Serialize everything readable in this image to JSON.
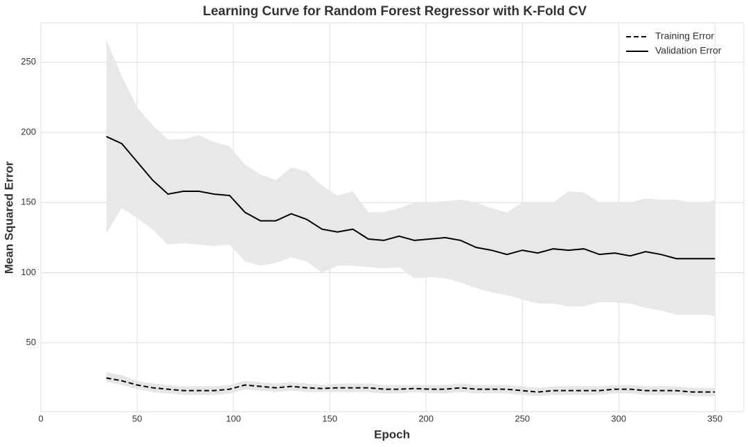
{
  "chart_data": {
    "type": "line",
    "title": "Learning Curve for Random Forest Regressor with K-Fold CV",
    "x_label": "Epoch",
    "y_label": "Mean Squared Error",
    "x": [
      34,
      42,
      50,
      58,
      66,
      74,
      82,
      90,
      98,
      106,
      114,
      122,
      130,
      138,
      146,
      154,
      162,
      170,
      178,
      186,
      194,
      202,
      210,
      218,
      226,
      234,
      242,
      250,
      258,
      266,
      274,
      282,
      290,
      298,
      306,
      314,
      322,
      330,
      338,
      346,
      350
    ],
    "series": [
      {
        "name": "Training Error",
        "color": "#000000",
        "dash": "dashed",
        "band_color": "#e6e6e6",
        "values": [
          25,
          23,
          20,
          18,
          17,
          16,
          16,
          16,
          17,
          20,
          19,
          18,
          19,
          18,
          17.5,
          18,
          18,
          18,
          17,
          17,
          17.5,
          17,
          17,
          18,
          17,
          17,
          17,
          16,
          15,
          16,
          16,
          16,
          16,
          17,
          17,
          16,
          16,
          16,
          15,
          15,
          15
        ],
        "upper": [
          29,
          27,
          23,
          21,
          20,
          19,
          19,
          19,
          20,
          23,
          22,
          21,
          22,
          21,
          20,
          21,
          21,
          21,
          20,
          20,
          20,
          20,
          20,
          21,
          20,
          20,
          20,
          19,
          18,
          19,
          19,
          19,
          19,
          20,
          20,
          19,
          19,
          19,
          18,
          18,
          18
        ],
        "lower": [
          22,
          20,
          17,
          15,
          14,
          13,
          13,
          13,
          14,
          17,
          16,
          15,
          16,
          15,
          15,
          15,
          15,
          15,
          14,
          14,
          15,
          14,
          14,
          15,
          14,
          14,
          14,
          13,
          12,
          13,
          13,
          13,
          13,
          14,
          14,
          13,
          13,
          13,
          12,
          12,
          12
        ]
      },
      {
        "name": "Validation Error",
        "color": "#000000",
        "dash": "solid",
        "band_color": "#e8e8e8",
        "values": [
          197,
          192,
          179,
          166,
          156,
          158,
          158,
          156,
          155,
          143,
          137,
          137,
          142,
          138,
          131,
          129,
          131,
          124,
          123,
          126,
          123,
          124,
          125,
          123,
          118,
          116,
          113,
          116,
          114,
          117,
          116,
          117,
          113,
          114,
          112,
          115,
          113,
          110,
          110,
          110,
          110
        ],
        "upper": [
          266,
          240,
          218,
          205,
          195,
          195,
          198,
          193,
          190,
          177,
          170,
          166,
          175,
          172,
          162,
          155,
          158,
          143,
          143,
          146,
          150,
          150,
          151,
          152,
          150,
          146,
          143,
          150,
          150,
          150,
          158,
          157,
          150,
          150,
          150,
          153,
          152,
          152,
          150,
          150,
          152
        ],
        "lower": [
          128,
          146,
          139,
          131,
          120,
          121,
          120,
          119,
          120,
          108,
          105,
          107,
          111,
          108,
          100,
          105,
          105,
          104,
          103,
          104,
          96,
          97,
          96,
          93,
          89,
          86,
          84,
          81,
          78,
          78,
          76,
          76,
          79,
          79,
          78,
          75,
          73,
          70,
          70,
          70,
          69
        ]
      }
    ],
    "xlim": [
      0,
      365
    ],
    "ylim": [
      1,
      278
    ],
    "xticks": [
      0,
      50,
      100,
      150,
      200,
      250,
      300,
      350
    ],
    "yticks": [
      50,
      100,
      150,
      200,
      250
    ],
    "grid": true,
    "legend": "upper right"
  }
}
